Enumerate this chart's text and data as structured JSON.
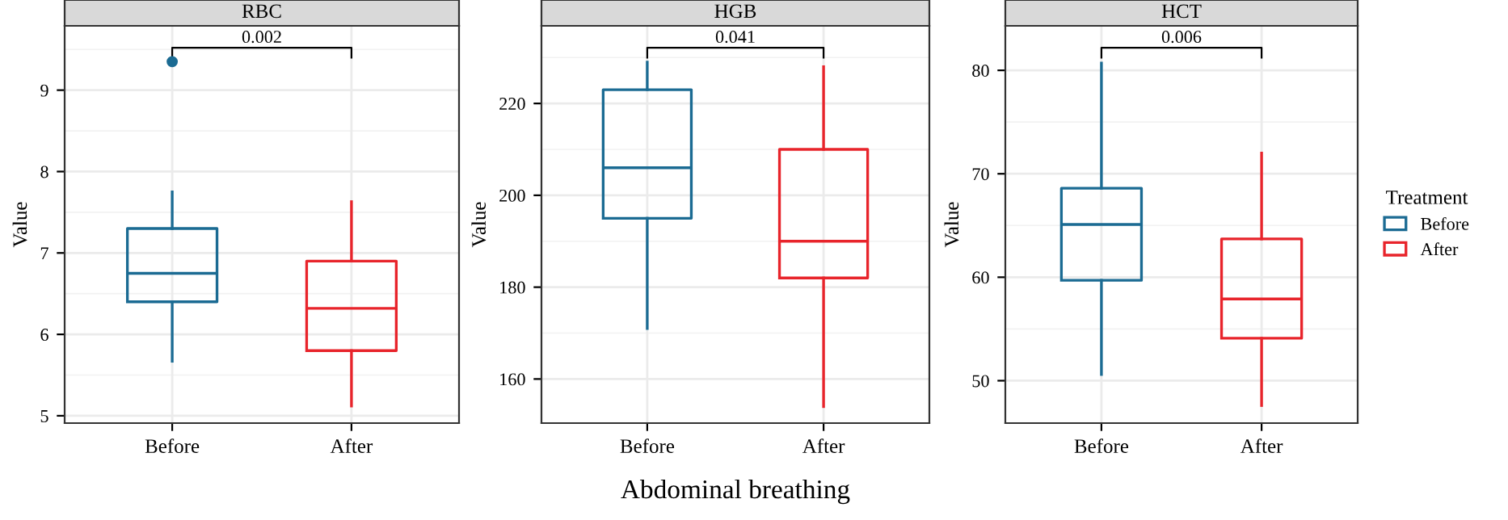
{
  "chart_data": [
    {
      "type": "box",
      "title": "RBC",
      "ylabel": "Value",
      "categories": [
        "Before",
        "After"
      ],
      "ylim": [
        4.91,
        9.79
      ],
      "yticks": [
        5,
        6,
        7,
        8,
        9
      ],
      "grid": true,
      "annotations": [
        "0.002"
      ],
      "colors": [
        "#1b6b93",
        "#e8242b"
      ],
      "boxes": [
        {
          "low": 5.67,
          "q1": 6.4,
          "median": 6.75,
          "q3": 7.3,
          "high": 7.75,
          "outliers": [
            9.35
          ]
        },
        {
          "low": 5.12,
          "q1": 5.8,
          "median": 6.32,
          "q3": 6.9,
          "high": 7.63
        }
      ]
    },
    {
      "type": "box",
      "title": "HGB",
      "ylabel": "Value",
      "xlabel": "Abdominal breathing",
      "categories": [
        "Before",
        "After"
      ],
      "ylim": [
        150.4,
        236.9
      ],
      "yticks": [
        160,
        180,
        200,
        220
      ],
      "grid": true,
      "annotations": [
        "0.041"
      ],
      "colors": [
        "#1b6b93",
        "#e8242b"
      ],
      "boxes": [
        {
          "low": 171,
          "q1": 195,
          "median": 206,
          "q3": 223,
          "high": 229
        },
        {
          "low": 154,
          "q1": 182,
          "median": 190,
          "q3": 210,
          "high": 228
        }
      ]
    },
    {
      "type": "box",
      "title": "HCT",
      "ylabel": "Value",
      "categories": [
        "Before",
        "After"
      ],
      "ylim": [
        45.9,
        84.3
      ],
      "yticks": [
        50,
        60,
        70,
        80
      ],
      "grid": true,
      "legend": "right",
      "legend_title": "Treatment",
      "annotations": [
        "0.006"
      ],
      "series": [
        {
          "name": "Before",
          "color": "#1b6b93",
          "boxes": [
            {
              "low": 50.6,
              "q1": 59.7,
              "median": 65.1,
              "q3": 68.6,
              "high": 80.7
            },
            null
          ]
        },
        {
          "name": "After",
          "color": "#e8242b",
          "boxes": [
            null,
            {
              "low": 47.6,
              "q1": 54.1,
              "median": 57.9,
              "q3": 63.7,
              "high": 72
            }
          ]
        }
      ]
    }
  ]
}
